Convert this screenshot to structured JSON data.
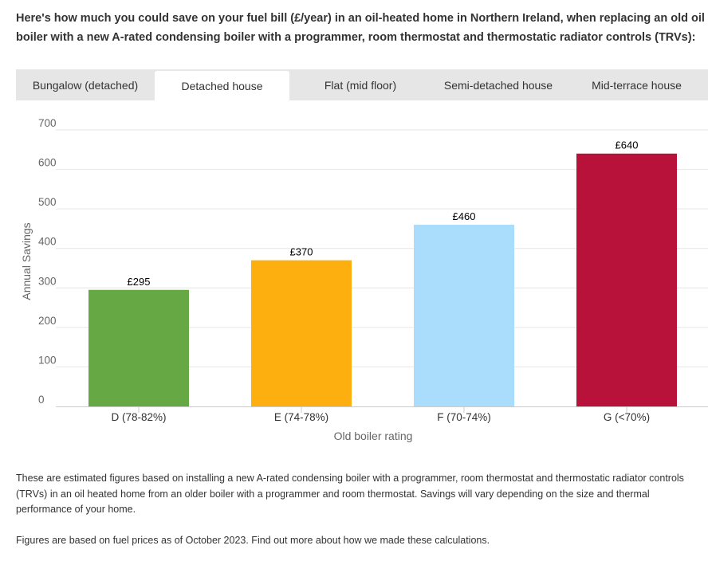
{
  "intro": "Here's how much you could save on your fuel bill (£/year) in an oil-heated home in Northern Ireland, when replacing an old oil boiler with a new A-rated condensing boiler with a programmer, room thermostat and thermostatic radiator controls (TRVs):",
  "tabs": [
    {
      "label": "Bungalow (detached)",
      "active": false
    },
    {
      "label": "Detached house",
      "active": true
    },
    {
      "label": "Flat (mid floor)",
      "active": false
    },
    {
      "label": "Semi-detached house",
      "active": false
    },
    {
      "label": "Mid-terrace house",
      "active": false
    }
  ],
  "chart_data": {
    "type": "bar",
    "categories": [
      "D (78-82%)",
      "E (74-78%)",
      "F (70-74%)",
      "G (<70%)"
    ],
    "values": [
      295,
      370,
      460,
      640
    ],
    "data_labels": [
      "£295",
      "£370",
      "£460",
      "£640"
    ],
    "colors": [
      "#65a844",
      "#fcaf0f",
      "#aadcfb",
      "#b8123b"
    ],
    "title": "",
    "xlabel": "Old boiler rating",
    "ylabel": "Annual Savings",
    "ylim": [
      0,
      700
    ],
    "yticks": [
      0,
      100,
      200,
      300,
      400,
      500,
      600,
      700
    ],
    "grid": true,
    "legend": "none"
  },
  "notes": {
    "estimate": "These are estimated figures based on installing a new A-rated condensing boiler with a programmer, room thermostat and thermostatic radiator controls (TRVs) in an oil heated home from an older boiler with a programmer and room thermostat. Savings will vary depending on the size and thermal performance of your home.",
    "fuel_prices": "Figures are based on fuel prices as of October 2023. Find out more about how we made these calculations."
  }
}
